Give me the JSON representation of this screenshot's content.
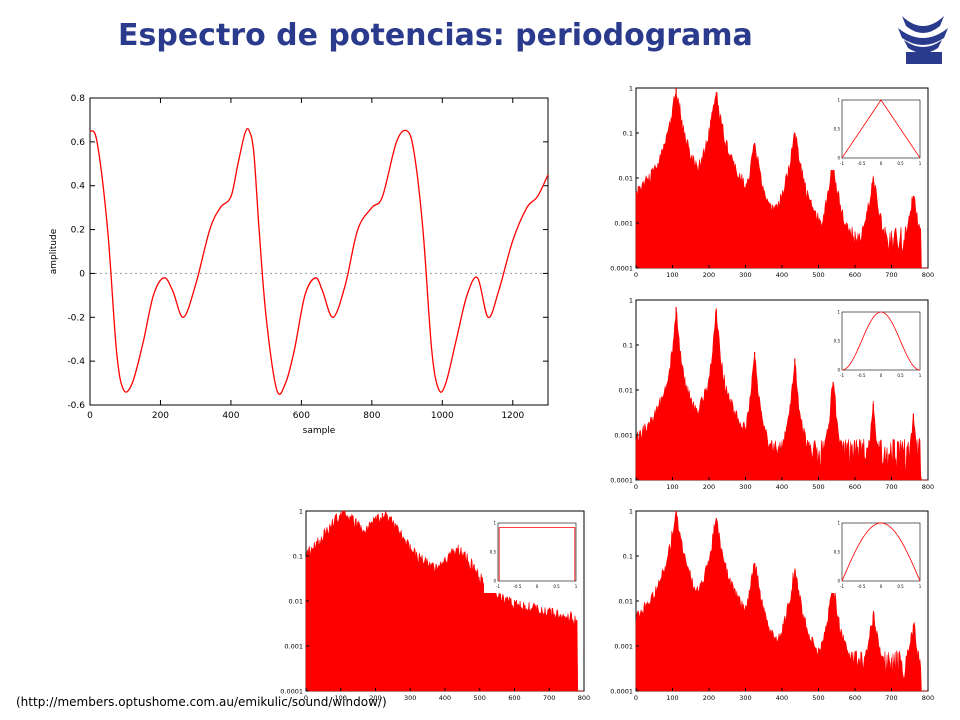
{
  "title": "Espectro de potencias: periodograma",
  "source": "(http://members.optushome.com.au/emikulic/sound/window/)",
  "logo": {
    "text": "INAOE",
    "color": "#2a3a8c"
  },
  "colors": {
    "signal": "#ff0000",
    "axis": "#000000",
    "title": "#2a3a8c",
    "zero_line": "#999999"
  },
  "chart_data": [
    {
      "id": "signal",
      "type": "line",
      "xlabel": "sample",
      "ylabel": "amplitude",
      "xlim": [
        0,
        1300
      ],
      "ylim": [
        -0.6,
        0.8
      ],
      "xticks": [
        "0",
        "200",
        "400",
        "600",
        "800",
        "1000",
        "1200"
      ],
      "yticks": [
        "-0.6",
        "-0.4",
        "-0.2",
        "0",
        "0.2",
        "0.4",
        "0.6",
        "0.8"
      ],
      "x": [
        0,
        20,
        50,
        75,
        95,
        120,
        150,
        180,
        210,
        235,
        265,
        300,
        340,
        370,
        400,
        420,
        440,
        452,
        465,
        480,
        500,
        530,
        555,
        580,
        610,
        640,
        660,
        690,
        725,
        760,
        800,
        830,
        870,
        900,
        920,
        945,
        970,
        990,
        1010,
        1040,
        1070,
        1100,
        1130,
        1160,
        1200,
        1240,
        1270,
        1300
      ],
      "y": [
        0.65,
        0.6,
        0.2,
        -0.35,
        -0.53,
        -0.5,
        -0.32,
        -0.1,
        -0.02,
        -0.08,
        -0.2,
        -0.05,
        0.2,
        0.3,
        0.35,
        0.5,
        0.64,
        0.65,
        0.55,
        0.2,
        -0.2,
        -0.53,
        -0.5,
        -0.35,
        -0.1,
        -0.02,
        -0.08,
        -0.2,
        -0.05,
        0.2,
        0.3,
        0.35,
        0.6,
        0.65,
        0.55,
        0.2,
        -0.35,
        -0.53,
        -0.5,
        -0.3,
        -0.1,
        -0.02,
        -0.2,
        -0.08,
        0.15,
        0.3,
        0.35,
        0.45
      ],
      "grid": false
    },
    {
      "id": "spec_triangular",
      "type": "area",
      "yscale": "log",
      "xlim": [
        0,
        800
      ],
      "ylim": [
        0.0001,
        1
      ],
      "xticks": [
        "0",
        "100",
        "200",
        "300",
        "400",
        "500",
        "600",
        "700",
        "800"
      ],
      "yticks": [
        "0.0001",
        "0.001",
        "0.01",
        "0.1",
        "1"
      ],
      "peaks": [
        {
          "x": 110,
          "y": 1
        },
        {
          "x": 220,
          "y": 0.8
        },
        {
          "x": 325,
          "y": 0.06
        },
        {
          "x": 435,
          "y": 0.1
        },
        {
          "x": 540,
          "y": 0.02
        },
        {
          "x": 650,
          "y": 0.01
        },
        {
          "x": 760,
          "y": 0.004
        }
      ],
      "spread": 8,
      "floor": 0.0003,
      "inset": {
        "shape": "triangle",
        "xticks": [
          "-1",
          "-0.5",
          "0",
          "0.5",
          "1"
        ],
        "yticks": [
          "0",
          "0.5",
          "1"
        ]
      }
    },
    {
      "id": "spec_hann",
      "type": "area",
      "yscale": "log",
      "xlim": [
        0,
        800
      ],
      "ylim": [
        0.0001,
        1
      ],
      "xticks": [
        "0",
        "100",
        "200",
        "300",
        "400",
        "500",
        "600",
        "700",
        "800"
      ],
      "yticks": [
        "0.0001",
        "0.001",
        "0.01",
        "0.1",
        "1"
      ],
      "peaks": [
        {
          "x": 110,
          "y": 0.7
        },
        {
          "x": 220,
          "y": 0.6
        },
        {
          "x": 325,
          "y": 0.07
        },
        {
          "x": 435,
          "y": 0.05
        },
        {
          "x": 540,
          "y": 0.02
        },
        {
          "x": 650,
          "y": 0.005
        },
        {
          "x": 760,
          "y": 0.003
        }
      ],
      "spread": 4,
      "floor": 0.0003,
      "inset": {
        "shape": "hann",
        "xticks": [
          "-1",
          "-0.5",
          "0",
          "0.5",
          "1"
        ],
        "yticks": [
          "0",
          "0.5",
          "1"
        ]
      }
    },
    {
      "id": "spec_rect",
      "type": "area",
      "yscale": "log",
      "xlim": [
        0,
        800
      ],
      "ylim": [
        0.0001,
        1
      ],
      "xticks": [
        "0",
        "100",
        "200",
        "300",
        "400",
        "500",
        "600",
        "700",
        "800"
      ],
      "yticks": [
        "0.0001",
        "0.001",
        "0.01",
        "0.1",
        "1"
      ],
      "peaks": [
        {
          "x": 110,
          "y": 1
        },
        {
          "x": 220,
          "y": 0.9
        },
        {
          "x": 325,
          "y": 0.07
        },
        {
          "x": 435,
          "y": 0.15
        },
        {
          "x": 540,
          "y": 0.01
        },
        {
          "x": 650,
          "y": 0.004
        },
        {
          "x": 760,
          "y": 0.002
        }
      ],
      "spread": 40,
      "floor": 0.0005,
      "inset": {
        "shape": "rect",
        "xticks": [
          "-1",
          "-0.5",
          "0",
          "0.5",
          "1"
        ],
        "yticks": [
          "0",
          "0.5",
          "1"
        ]
      }
    },
    {
      "id": "spec_sine",
      "type": "area",
      "yscale": "log",
      "xlim": [
        0,
        800
      ],
      "ylim": [
        0.0001,
        1
      ],
      "xticks": [
        "0",
        "100",
        "200",
        "300",
        "400",
        "500",
        "600",
        "700",
        "800"
      ],
      "yticks": [
        "0.0001",
        "0.001",
        "0.01",
        "0.1",
        "1"
      ],
      "peaks": [
        {
          "x": 110,
          "y": 1
        },
        {
          "x": 220,
          "y": 0.7
        },
        {
          "x": 325,
          "y": 0.07
        },
        {
          "x": 435,
          "y": 0.05
        },
        {
          "x": 540,
          "y": 0.02
        },
        {
          "x": 650,
          "y": 0.005
        },
        {
          "x": 760,
          "y": 0.003
        }
      ],
      "spread": 8,
      "floor": 0.0003,
      "inset": {
        "shape": "sine",
        "xticks": [
          "-1",
          "-0.5",
          "0",
          "0.5",
          "1"
        ],
        "yticks": [
          "0",
          "0.5",
          "1"
        ]
      }
    }
  ]
}
